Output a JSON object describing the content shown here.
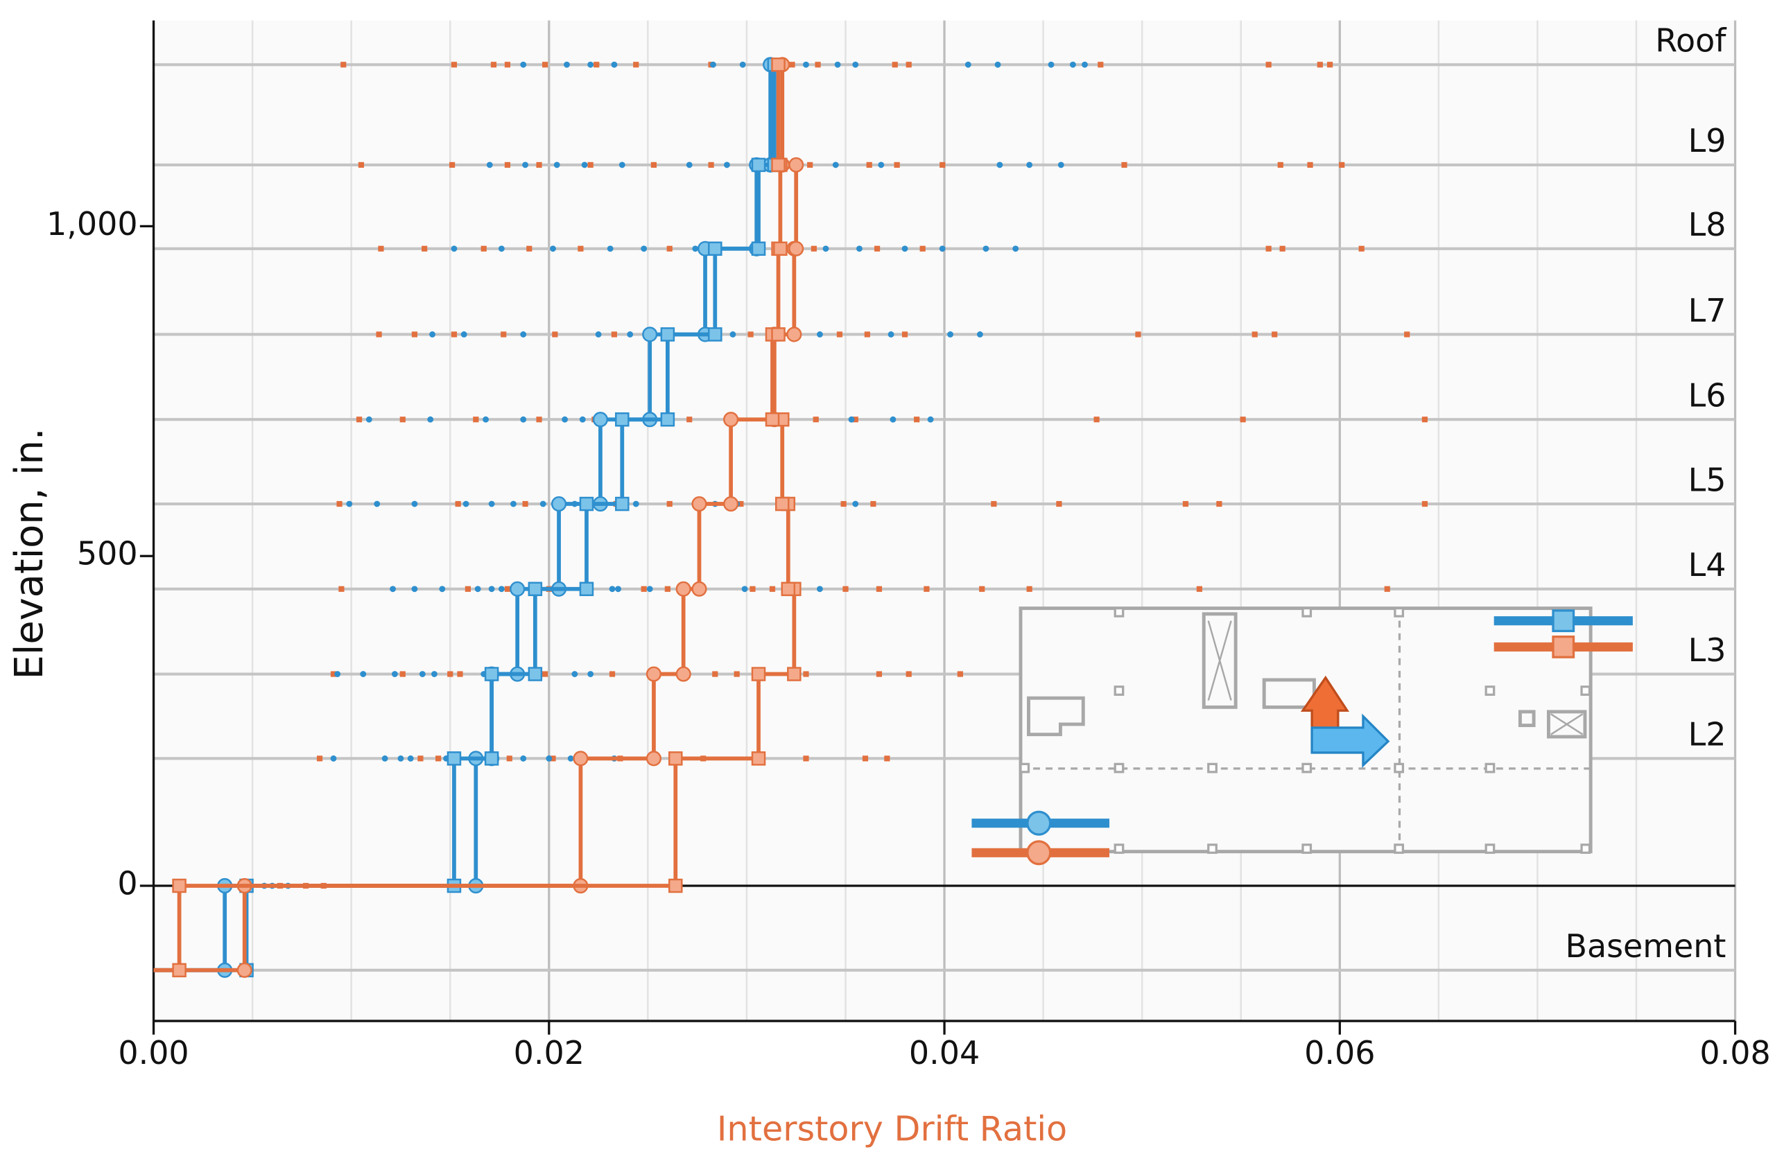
{
  "chart_data": {
    "type": "step",
    "xlabel": "Interstory Drift Ratio",
    "xlabel_color": "#e2703f",
    "ylabel": "Elevation, in.",
    "xlim": [
      0,
      0.08
    ],
    "xticks": [
      {
        "value": 0,
        "label": "0.00"
      },
      0.02,
      0.04,
      0.06,
      0.08
    ],
    "xminorticks": [
      0.005,
      0.01,
      0.015,
      0.025,
      0.03,
      0.035,
      0.045,
      0.05,
      0.055,
      0.065,
      0.07,
      0.075
    ],
    "ylim": [
      -205,
      1312
    ],
    "yticks": [
      0,
      500,
      {
        "value": 1000,
        "label": "1,000"
      }
    ],
    "grid": true,
    "levels": [
      "Basement",
      null,
      "L2",
      "L3",
      "L4",
      "L5",
      "L6",
      "L7",
      "L8",
      "L9",
      "Roof"
    ],
    "level_elevations": [
      -128,
      0,
      193,
      321,
      450,
      579,
      707,
      836,
      966,
      1093,
      1245
    ],
    "series": [
      {
        "color": "#2e8fce",
        "marker": "circle",
        "marker_fill": "#7cc3ea",
        "values": [
          0.0036,
          0.0163,
          0.0171,
          0.0184,
          0.0205,
          0.0226,
          0.0251,
          0.0279,
          0.0305,
          0.0312
        ]
      },
      {
        "color": "#2e8fce",
        "marker": "square",
        "marker_fill": "#7cc3ea",
        "values": [
          0.0047,
          0.0152,
          0.0171,
          0.0193,
          0.0219,
          0.0237,
          0.026,
          0.0284,
          0.0306,
          0.0314
        ]
      },
      {
        "color": "#e2703f",
        "marker": "circle",
        "marker_fill": "#f4a98a",
        "values": [
          0.0046,
          0.0216,
          0.0253,
          0.0268,
          0.0276,
          0.0292,
          0.0314,
          0.0324,
          0.0325,
          0.0318
        ]
      },
      {
        "color": "#e2703f",
        "marker": "square",
        "marker_fill": "#f4a98a",
        "values": [
          0.0013,
          0.0264,
          0.0306,
          0.0324,
          0.0321,
          0.0318,
          0.0313,
          0.0316,
          0.0317,
          0.0316
        ]
      }
    ],
    "points": [
      {
        "color": "#e2703f",
        "marker": "square",
        "x_by_level": [
          [],
          [
            0.0014,
            0.0064,
            0.0077,
            0.0086
          ],
          [
            0.0084,
            0.0135,
            0.0144,
            0.018,
            0.0202,
            0.0236,
            0.0278,
            0.033,
            0.036,
            0.0371
          ],
          [
            0.0091,
            0.0126,
            0.015,
            0.0155,
            0.0198,
            0.0232,
            0.0284,
            0.0295,
            0.033,
            0.0367,
            0.0382,
            0.0408
          ],
          [
            0.0095,
            0.0159,
            0.0179,
            0.02,
            0.0248,
            0.026,
            0.0303,
            0.0313,
            0.035,
            0.0367,
            0.0391,
            0.0419,
            0.0443,
            0.0529,
            0.0624
          ],
          [
            0.0094,
            0.0154,
            0.0188,
            0.0234,
            0.0261,
            0.0297,
            0.0349,
            0.0364,
            0.0425,
            0.0458,
            0.0522,
            0.0539,
            0.0643
          ],
          [
            0.0104,
            0.0126,
            0.0163,
            0.0195,
            0.0223,
            0.0271,
            0.0335,
            0.0355,
            0.0386,
            0.0477,
            0.0551,
            0.0643
          ],
          [
            0.0114,
            0.0132,
            0.0152,
            0.0177,
            0.0203,
            0.0233,
            0.0302,
            0.0347,
            0.0361,
            0.038,
            0.0498,
            0.0557,
            0.0567,
            0.0634
          ],
          [
            0.0115,
            0.0137,
            0.0167,
            0.019,
            0.0216,
            0.0261,
            0.0334,
            0.0366,
            0.0389,
            0.0564,
            0.0571,
            0.0611
          ],
          [
            0.0105,
            0.0151,
            0.0179,
            0.0195,
            0.0221,
            0.0253,
            0.0282,
            0.0332,
            0.0362,
            0.0376,
            0.0399,
            0.0491,
            0.057,
            0.0585,
            0.0601
          ],
          [
            0.0096,
            0.0152,
            0.0172,
            0.0179,
            0.0198,
            0.0224,
            0.0244,
            0.0282,
            0.0323,
            0.0336,
            0.0375,
            0.0382,
            0.0479,
            0.0564,
            0.059,
            0.0595
          ]
        ]
      },
      {
        "color": "#2e8fce",
        "marker": "circle",
        "x_by_level": [
          [],
          [
            0.0056,
            0.006,
            0.0068
          ],
          [
            0.0091,
            0.0117,
            0.0125,
            0.013,
            0.0148,
            0.0187,
            0.02,
            0.0211,
            0.0233
          ],
          [
            0.0093,
            0.0106,
            0.0122,
            0.0136,
            0.0142,
            0.0167,
            0.0194,
            0.0213,
            0.0221
          ],
          [
            0.0121,
            0.0132,
            0.0146,
            0.0164,
            0.0171,
            0.0176,
            0.0232,
            0.0235,
            0.0251,
            0.0299,
            0.0337
          ],
          [
            0.0099,
            0.0113,
            0.0132,
            0.0158,
            0.0171,
            0.0182,
            0.0197,
            0.0213,
            0.0244,
            0.0284,
            0.0295,
            0.0355
          ],
          [
            0.0109,
            0.014,
            0.0168,
            0.0187,
            0.0208,
            0.0217,
            0.026,
            0.0353,
            0.0374,
            0.0393
          ],
          [
            0.0141,
            0.0157,
            0.0187,
            0.0225,
            0.0241,
            0.0293,
            0.0337,
            0.0373,
            0.0403,
            0.0418
          ],
          [
            0.0152,
            0.0176,
            0.0202,
            0.0231,
            0.0248,
            0.0274,
            0.034,
            0.0357,
            0.038,
            0.0399,
            0.0421,
            0.0436
          ],
          [
            0.017,
            0.0188,
            0.0204,
            0.0218,
            0.0237,
            0.0271,
            0.029,
            0.0345,
            0.0368,
            0.0428,
            0.0443,
            0.0459
          ],
          [
            0.0187,
            0.0209,
            0.0221,
            0.0233,
            0.0283,
            0.0298,
            0.033,
            0.0346,
            0.0355,
            0.0412,
            0.0427,
            0.0454,
            0.0465,
            0.0471
          ]
        ]
      }
    ]
  }
}
